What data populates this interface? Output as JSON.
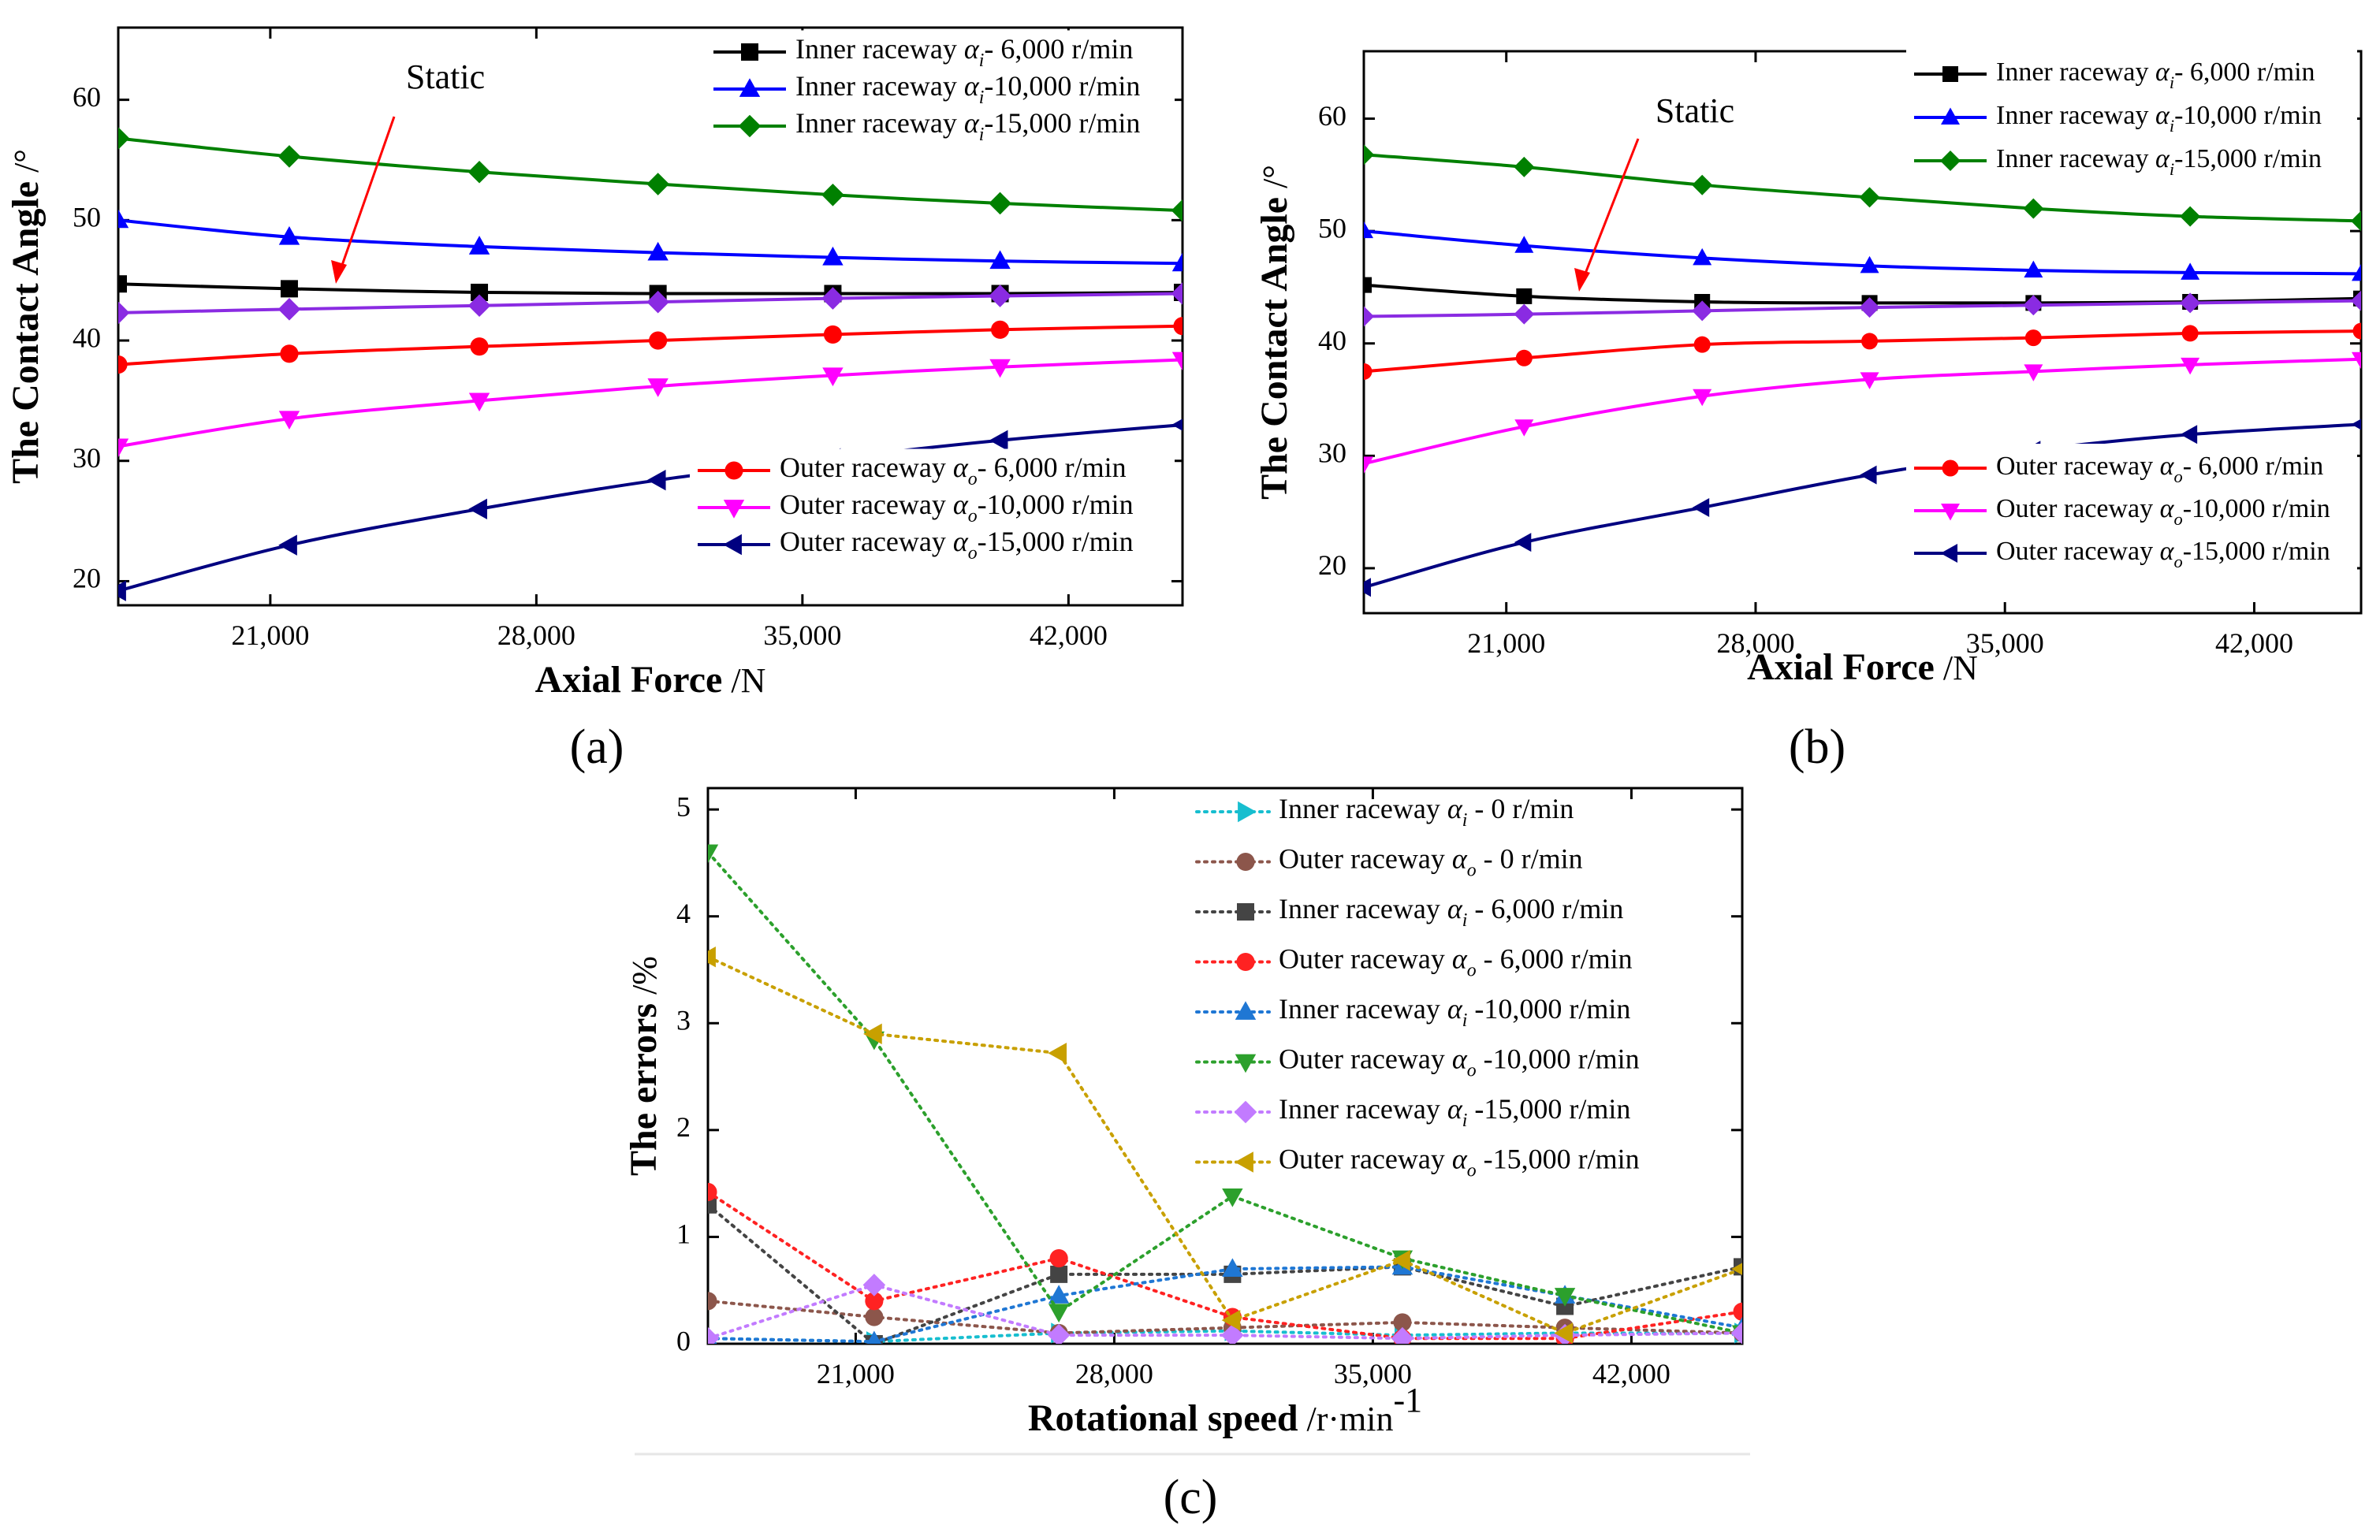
{
  "panels": [
    {
      "id": "a",
      "panel_label": "(a)",
      "annotation": "Static"
    },
    {
      "id": "b",
      "panel_label": "(b)",
      "annotation": "Static"
    },
    {
      "id": "c",
      "panel_label": "(c)"
    }
  ],
  "chart_data": [
    {
      "id": "a",
      "type": "line",
      "title": "",
      "xlabel": "Axial Force",
      "xunit": "/N",
      "ylabel": "The Contact Angle",
      "yunit": "/°",
      "xlim": [
        17000,
        45000
      ],
      "ylim": [
        18,
        66
      ],
      "xticks": [
        21000,
        28000,
        35000,
        42000
      ],
      "xtick_labels": [
        "21,000",
        "28,000",
        "35,000",
        "42,000"
      ],
      "yticks": [
        20,
        30,
        40,
        50,
        60
      ],
      "ytick_labels": [
        "20",
        "30",
        "40",
        "50",
        "60"
      ],
      "x": [
        17000,
        21500,
        26500,
        31200,
        35800,
        40200,
        45000
      ],
      "legend_groups": [
        {
          "placement": "top-right",
          "series": [
            0,
            1,
            2
          ]
        },
        {
          "placement": "bottom-right",
          "series": [
            3,
            4,
            5
          ]
        }
      ],
      "series": [
        {
          "name": "Inner raceway",
          "sym": "α",
          "sub": "i",
          "speed": "- 6,000 r/min",
          "color": "#000000",
          "marker": "square",
          "values": [
            44.7,
            44.3,
            44.0,
            43.9,
            43.9,
            43.9,
            44.0
          ]
        },
        {
          "name": "Inner raceway",
          "sym": "α",
          "sub": "i",
          "speed": "-10,000 r/min",
          "color": "#0000ff",
          "marker": "triangle-up",
          "values": [
            50.0,
            48.6,
            47.8,
            47.3,
            46.9,
            46.6,
            46.4
          ]
        },
        {
          "name": "Inner raceway",
          "sym": "α",
          "sub": "i",
          "speed": "-15,000 r/min",
          "color": "#008000",
          "marker": "diamond",
          "values": [
            56.8,
            55.3,
            54.0,
            53.0,
            52.1,
            51.4,
            50.8
          ]
        },
        {
          "name": "Outer raceway",
          "sym": "α",
          "sub": "o",
          "speed": "- 6,000 r/min",
          "color": "#ff0000",
          "marker": "circle",
          "values": [
            38.0,
            38.9,
            39.5,
            40.0,
            40.5,
            40.9,
            41.2
          ]
        },
        {
          "name": "Outer raceway",
          "sym": "α",
          "sub": "o",
          "speed": "-10,000 r/min",
          "color": "#ff00ff",
          "marker": "triangle-down",
          "values": [
            31.2,
            33.5,
            35.0,
            36.2,
            37.1,
            37.8,
            38.4
          ]
        },
        {
          "name": "Outer raceway",
          "sym": "α",
          "sub": "o",
          "speed": "-15,000 r/min",
          "color": "#000080",
          "marker": "triangle-left",
          "values": [
            19.2,
            23.0,
            26.0,
            28.4,
            30.2,
            31.7,
            33.0
          ]
        },
        {
          "name": "Static",
          "legend": false,
          "color": "#8a2be2",
          "marker": "diamond",
          "values": [
            42.3,
            42.6,
            42.9,
            43.2,
            43.5,
            43.7,
            43.9
          ]
        }
      ]
    },
    {
      "id": "b",
      "type": "line",
      "title": "",
      "xlabel": "Axial Force",
      "xunit": "/N",
      "ylabel": "The Contact Angle",
      "yunit": "/°",
      "xlim": [
        17000,
        45000
      ],
      "ylim": [
        16,
        66
      ],
      "xticks": [
        21000,
        28000,
        35000,
        42000
      ],
      "xtick_labels": [
        "21,000",
        "28,000",
        "35,000",
        "42,000"
      ],
      "yticks": [
        20,
        30,
        40,
        50,
        60
      ],
      "ytick_labels": [
        "20",
        "30",
        "40",
        "50",
        "60"
      ],
      "x": [
        17000,
        21500,
        26500,
        31200,
        35800,
        40200,
        45000
      ],
      "legend_groups": [
        {
          "placement": "top-right",
          "series": [
            0,
            1,
            2
          ]
        },
        {
          "placement": "bottom-right",
          "series": [
            3,
            4,
            5
          ]
        }
      ],
      "series": [
        {
          "name": "Inner raceway",
          "sym": "α",
          "sub": "i",
          "speed": "- 6,000 r/min",
          "color": "#000000",
          "marker": "square",
          "values": [
            45.2,
            44.2,
            43.7,
            43.6,
            43.6,
            43.7,
            44.0
          ]
        },
        {
          "name": "Inner raceway",
          "sym": "α",
          "sub": "i",
          "speed": "-10,000 r/min",
          "color": "#0000ff",
          "marker": "triangle-up",
          "values": [
            50.0,
            48.7,
            47.6,
            46.9,
            46.5,
            46.3,
            46.2
          ]
        },
        {
          "name": "Inner raceway",
          "sym": "α",
          "sub": "i",
          "speed": "-15,000 r/min",
          "color": "#008000",
          "marker": "diamond",
          "values": [
            56.8,
            55.7,
            54.1,
            53.0,
            52.0,
            51.3,
            50.9
          ]
        },
        {
          "name": "Outer raceway",
          "sym": "α",
          "sub": "o",
          "speed": "- 6,000 r/min",
          "color": "#ff0000",
          "marker": "circle",
          "values": [
            37.5,
            38.7,
            39.9,
            40.2,
            40.5,
            40.9,
            41.1
          ]
        },
        {
          "name": "Outer raceway",
          "sym": "α",
          "sub": "o",
          "speed": "-10,000 r/min",
          "color": "#ff00ff",
          "marker": "triangle-down",
          "values": [
            29.3,
            32.6,
            35.3,
            36.8,
            37.5,
            38.1,
            38.6
          ]
        },
        {
          "name": "Outer raceway",
          "sym": "α",
          "sub": "o",
          "speed": "-15,000 r/min",
          "color": "#000080",
          "marker": "triangle-left",
          "values": [
            18.3,
            22.3,
            25.4,
            28.3,
            30.5,
            31.9,
            32.8
          ]
        },
        {
          "name": "Static",
          "legend": false,
          "color": "#8a2be2",
          "marker": "diamond",
          "values": [
            42.4,
            42.6,
            42.9,
            43.2,
            43.4,
            43.6,
            43.8
          ]
        }
      ]
    },
    {
      "id": "c",
      "type": "line",
      "title": "",
      "xlabel": "Rotational speed",
      "xunit": "/r·min",
      "xunit_sup": "-1",
      "ylabel": "The errors",
      "yunit": "/%",
      "xlim": [
        17000,
        45000
      ],
      "ylim": [
        0,
        5.2
      ],
      "xticks": [
        21000,
        28000,
        35000,
        42000
      ],
      "xtick_labels": [
        "21,000",
        "28,000",
        "35,000",
        "42,000"
      ],
      "yticks": [
        0,
        1,
        2,
        3,
        4,
        5
      ],
      "ytick_labels": [
        "0",
        "1",
        "2",
        "3",
        "4",
        "5"
      ],
      "x": [
        17000,
        21500,
        26500,
        31200,
        35800,
        40200,
        45000
      ],
      "line_style": "dotted",
      "legend_groups": [
        {
          "placement": "top-right",
          "series": [
            0,
            1,
            2,
            3,
            4,
            5,
            6,
            7
          ]
        }
      ],
      "series": [
        {
          "name": "Inner raceway",
          "sym": "α",
          "sub": "i",
          "speed": " -  0 r/min",
          "color": "#17becf",
          "marker": "triangle-right",
          "values": [
            0.05,
            0.02,
            0.1,
            0.12,
            0.08,
            0.1,
            0.1
          ]
        },
        {
          "name": "Outer raceway",
          "sym": "α",
          "sub": "o",
          "speed": " -  0 r/min",
          "color": "#8c564b",
          "marker": "circle",
          "values": [
            0.4,
            0.25,
            0.1,
            0.15,
            0.2,
            0.15,
            0.1
          ]
        },
        {
          "name": "Inner raceway",
          "sym": "α",
          "sub": "i",
          "speed": " -  6,000 r/min",
          "color": "#444444",
          "marker": "square",
          "values": [
            1.3,
            0.0,
            0.65,
            0.65,
            0.72,
            0.35,
            0.72
          ]
        },
        {
          "name": "Outer raceway",
          "sym": "α",
          "sub": "o",
          "speed": " -  6,000 r/min",
          "color": "#ff2222",
          "marker": "circle",
          "values": [
            1.42,
            0.4,
            0.8,
            0.25,
            0.05,
            0.05,
            0.3
          ]
        },
        {
          "name": "Inner raceway",
          "sym": "α",
          "sub": "i",
          "speed": " -10,000 r/min",
          "color": "#1f77d4",
          "marker": "triangle-up",
          "values": [
            0.05,
            0.02,
            0.45,
            0.7,
            0.72,
            0.45,
            0.15
          ]
        },
        {
          "name": "Outer raceway",
          "sym": "α",
          "sub": "o",
          "speed": " -10,000 r/min",
          "color": "#2ca02c",
          "marker": "triangle-down",
          "values": [
            4.6,
            2.85,
            0.3,
            1.38,
            0.8,
            0.45,
            0.1
          ]
        },
        {
          "name": "Inner raceway",
          "sym": "α",
          "sub": "i",
          "speed": " -15,000 r/min",
          "color": "#c27bff",
          "marker": "diamond",
          "values": [
            0.05,
            0.55,
            0.08,
            0.08,
            0.05,
            0.08,
            0.1
          ]
        },
        {
          "name": "Outer raceway",
          "sym": "α",
          "sub": "o",
          "speed": " -15,000 r/min",
          "color": "#c8a000",
          "marker": "triangle-left",
          "values": [
            3.62,
            2.9,
            2.72,
            0.22,
            0.78,
            0.1,
            0.7
          ]
        }
      ]
    }
  ]
}
